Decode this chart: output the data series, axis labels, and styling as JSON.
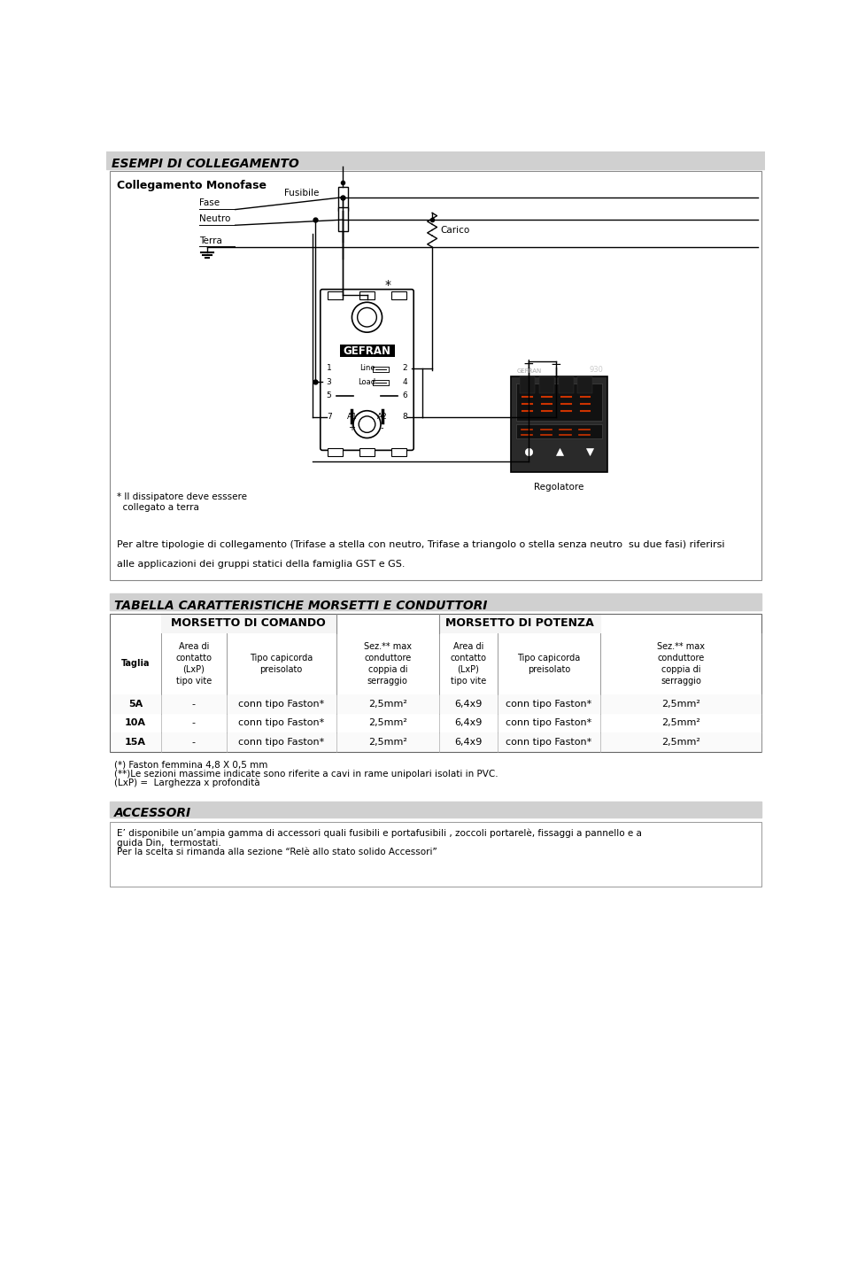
{
  "page_bg": "#ffffff",
  "header_bg": "#d0d0d0",
  "header_text": "ESEMPI DI COLLEGAMENTO",
  "section1_title": "Collegamento Monofase",
  "label_fase": "Fase",
  "label_neutro": "Neutro",
  "label_terra": "Terra",
  "label_fusibile": "Fusibile",
  "label_carico": "Carico",
  "label_star_note1": "* Il dissipatore deve esssere",
  "label_star_note2": "  collegato a terra",
  "label_regolatore": "Regolatore",
  "label_gefran": "GEFRAN",
  "para1": "Per altre tipologie di collegamento (Trifase a stella con neutro, Trifase a triangolo o stella senza neutro  su due fasi) riferirsi",
  "para2": "alle applicazioni dei gruppi statici della famiglia GST e GS.",
  "table_header": "TABELLA CARATTERISTICHE MORSETTI E CONDUTTORI",
  "col_header1": "MORSETTO DI COMANDO",
  "col_header2": "MORSETTO DI POTENZA",
  "row_header": "Taglia",
  "col1_1": "Area di\ncontatto\n(LxP)\ntipo vite",
  "col1_2": "Tipo capicorda\npreisolato",
  "col1_3": "Sez.** max\nconduttore\ncoppia di\nserraggio",
  "col2_1": "Area di\ncontatto\n(LxP)\ntipo vite",
  "col2_2": "Tipo capicorda\npreisolato",
  "col2_3": "Sez.** max\nconduttore\ncoppia di\nserraggio",
  "rows": [
    [
      "5A",
      "-",
      "conn tipo Faston*",
      "2,5mm²",
      "6,4x9",
      "conn tipo Faston*",
      "2,5mm²"
    ],
    [
      "10A",
      "-",
      "conn tipo Faston*",
      "2,5mm²",
      "6,4x9",
      "conn tipo Faston*",
      "2,5mm²"
    ],
    [
      "15A",
      "-",
      "conn tipo Faston*",
      "2,5mm²",
      "6,4x9",
      "conn tipo Faston*",
      "2,5mm²"
    ]
  ],
  "note1": "(*) Faston femmina 4,8 X 0,5 mm",
  "note2": "(**)Le sezioni massime indicate sono riferite a cavi in rame unipolari isolati in PVC.",
  "note3": "(LxP) =  Larghezza x profondità",
  "accessori_header": "ACCESSORI",
  "accessori_text1": "E’ disponibile un’ampia gamma di accessori quali fusibili e portafusibili , zoccoli portarelè, fissaggi a pannello e a",
  "accessori_text2": "guida Din,  termostati.",
  "accessori_text3": "Per la scelta si rimanda alla sezione “Relè allo stato solido Accessori”"
}
